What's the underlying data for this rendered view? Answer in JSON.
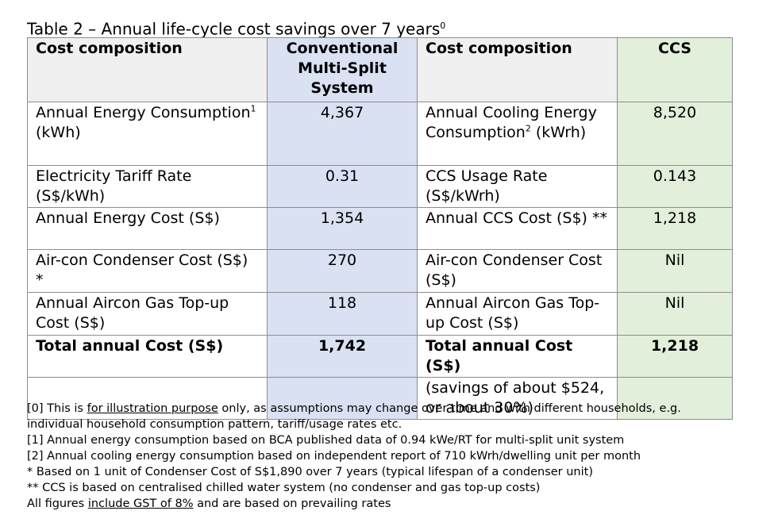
{
  "title": {
    "text": "Table 2 – Annual life-cycle cost savings over 7 years",
    "sup": "0"
  },
  "table": {
    "headers": {
      "col1": "Cost composition",
      "col2": "Conventional Multi-Split System",
      "col3": "Cost composition",
      "col4": "CCS"
    },
    "rows": [
      {
        "label_a": "Annual Energy Consumption",
        "label_a_sup": "1",
        "label_a_tail": " (kWh)",
        "value_a": "4,367",
        "label_b": "Annual Cooling Energy Consumption",
        "label_b_sup": "2",
        "label_b_tail": " (kWrh)",
        "value_b": "8,520"
      },
      {
        "label_a": "Electricity Tariff Rate (S$/kWh)",
        "value_a": "0.31",
        "label_b": "CCS Usage Rate (S$/kWrh)",
        "value_b": "0.143"
      },
      {
        "label_a": "Annual Energy Cost (S$)",
        "value_a": "1,354",
        "label_b": "Annual CCS Cost (S$) **",
        "value_b": "1,218"
      },
      {
        "label_a": "Air-con Condenser Cost (S$) *",
        "value_a": "270",
        "label_b": "Air-con Condenser Cost (S$)",
        "value_b": "Nil"
      },
      {
        "label_a": "Annual Aircon Gas Top-up Cost (S$)",
        "value_a": "118",
        "label_b": "Annual Aircon Gas Top-up Cost (S$)",
        "value_b": "Nil"
      }
    ],
    "total": {
      "label_a": "Total annual Cost (S$)",
      "value_a": "1,742",
      "label_b": "Total annual Cost (S$)",
      "value_b": "1,218"
    },
    "savings_note": "(savings of about $524, or about 30%)"
  },
  "notes": {
    "n0_pre": "[0] This is ",
    "n0_link": "for illustration purpose",
    "n0_post": " only, as assumptions may change over time and with different households, e.g.",
    "n0_line2": "individual household consumption pattern, tariff/usage rates etc.",
    "n1": "[1] Annual energy consumption based on BCA published data of 0.94 kWe/RT for multi-split unit system",
    "n2": "[2] Annual cooling energy consumption based on independent report of 710 kWrh/dwelling unit per month",
    "n3": "* Based on 1 unit of Condenser Cost of S$1,890 over 7 years (typical lifespan of a condenser unit)",
    "n4": "** CCS is based on centralised chilled water system (no condenser and gas top-up costs)",
    "n5_pre": "All figures ",
    "n5_link": "include GST of 8%",
    "n5_post": " and are based on prevailing rates"
  }
}
